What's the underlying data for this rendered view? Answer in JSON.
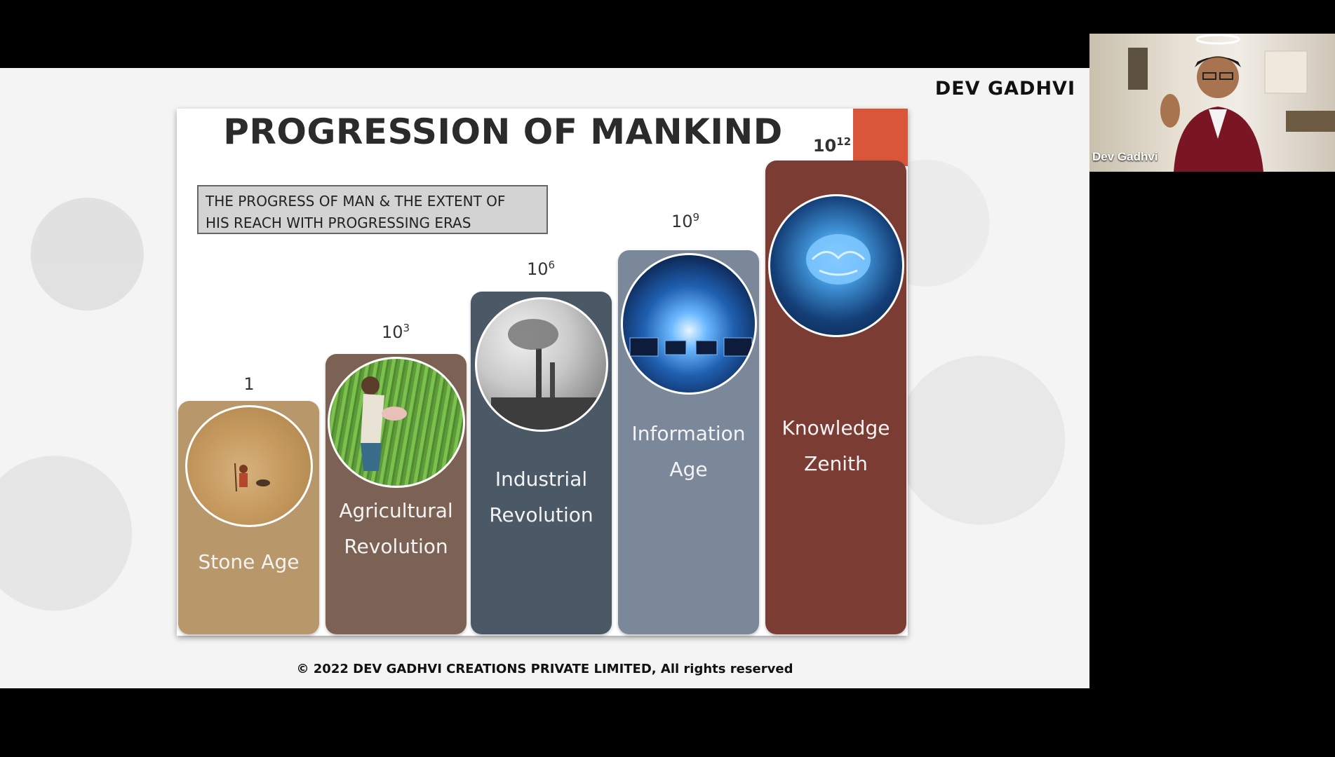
{
  "slide": {
    "brand": "DEV GADHVI",
    "title": "PROGRESSION OF MANKIND",
    "subtitle_line1": "THE PROGRESS OF MAN & THE EXTENT OF",
    "subtitle_line2": "HIS REACH WITH PROGRESSING ERAS",
    "footer": "© 2022 DEV GADHVI CREATIONS PRIVATE LIMITED, All rights reserved",
    "eras": [
      {
        "label_line1": "Stone Age",
        "label_line2": "",
        "scale_base": "1",
        "scale_exp": "",
        "color": "#b8976a"
      },
      {
        "label_line1": "Agricultural",
        "label_line2": "Revolution",
        "scale_base": "10",
        "scale_exp": "3",
        "color": "#7b6254"
      },
      {
        "label_line1": "Industrial",
        "label_line2": "Revolution",
        "scale_base": "10",
        "scale_exp": "6",
        "color": "#4b5866"
      },
      {
        "label_line1": "Information",
        "label_line2": "Age",
        "scale_base": "10",
        "scale_exp": "9",
        "color": "#7b889a"
      },
      {
        "label_line1": "Knowledge",
        "label_line2": "Zenith",
        "scale_base": "10",
        "scale_exp": "12",
        "color": "#7b3c34"
      }
    ]
  },
  "video": {
    "participant_name": "Dev Gadhvi"
  }
}
